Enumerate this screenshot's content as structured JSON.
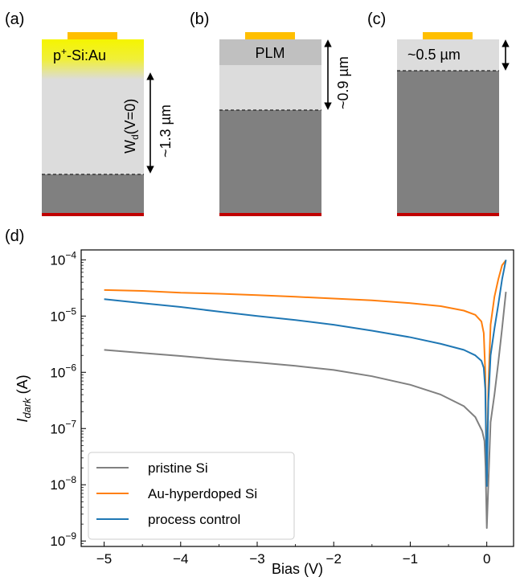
{
  "panels": {
    "a": {
      "label": "(a)",
      "layer_label_main": "p",
      "layer_label_sup": "+",
      "layer_label_rest": "-Si:Au",
      "depletion_label_main": "W",
      "depletion_label_sub": "d",
      "depletion_label_rest": "(V=0)",
      "depth_label": "~1.3 µm"
    },
    "b": {
      "label": "(b)",
      "layer_label": "PLM",
      "depth_label": "~0.9 µm"
    },
    "c": {
      "label": "(c)",
      "depth_label": "~0.5 µm"
    },
    "d": {
      "label": "(d)"
    }
  },
  "colors": {
    "contact": "#ffbf00",
    "doped_layer": "#f5f500",
    "depletion": "#dcdcdc",
    "bulk": "#808080",
    "back_contact": "#c00000",
    "plm_layer": "#c0c0c0"
  },
  "chart_data": {
    "type": "line",
    "xlabel": "Bias (V)",
    "ylabel_main": "I",
    "ylabel_sub": "dark",
    "ylabel_rest": " (A)",
    "xlim": [
      -5.3,
      0.35
    ],
    "ylim": [
      8e-10,
      0.00015
    ],
    "yscale": "log",
    "x_ticks": [
      -5,
      -4,
      -3,
      -2,
      -1,
      0
    ],
    "x_tick_labels": [
      "−5",
      "−4",
      "−3",
      "−2",
      "−1",
      "0"
    ],
    "y_ticks": [
      -9,
      -8,
      -7,
      -6,
      -5,
      -4
    ],
    "legend_position": "lower-left",
    "series": [
      {
        "name": "pristine Si",
        "color": "#808080",
        "points": [
          [
            -5,
            2.5e-06
          ],
          [
            -4.5,
            2.2e-06
          ],
          [
            -4,
            1.95e-06
          ],
          [
            -3.5,
            1.7e-06
          ],
          [
            -3,
            1.5e-06
          ],
          [
            -2.5,
            1.3e-06
          ],
          [
            -2,
            1.1e-06
          ],
          [
            -1.5,
            8.5e-07
          ],
          [
            -1,
            6e-07
          ],
          [
            -0.6,
            4e-07
          ],
          [
            -0.3,
            2.5e-07
          ],
          [
            -0.15,
            1.6e-07
          ],
          [
            -0.06,
            9e-08
          ],
          [
            -0.03,
            6e-08
          ],
          [
            -0.015,
            2e-08
          ],
          [
            0,
            1.7e-09
          ],
          [
            0.02,
            1e-08
          ],
          [
            0.05,
            1.3e-07
          ],
          [
            0.1,
            4e-07
          ],
          [
            0.15,
            1.5e-06
          ],
          [
            0.2,
            6e-06
          ],
          [
            0.25,
            2.7e-05
          ]
        ]
      },
      {
        "name": "Au-hyperdoped Si",
        "color": "#ff7f0e",
        "points": [
          [
            -5,
            2.9e-05
          ],
          [
            -4.5,
            2.8e-05
          ],
          [
            -4,
            2.6e-05
          ],
          [
            -3.5,
            2.5e-05
          ],
          [
            -3,
            2.35e-05
          ],
          [
            -2.5,
            2.2e-05
          ],
          [
            -2,
            2.05e-05
          ],
          [
            -1.5,
            1.9e-05
          ],
          [
            -1,
            1.7e-05
          ],
          [
            -0.6,
            1.5e-05
          ],
          [
            -0.3,
            1.25e-05
          ],
          [
            -0.15,
            1.05e-05
          ],
          [
            -0.07,
            8e-06
          ],
          [
            -0.04,
            5e-06
          ],
          [
            -0.02,
            1e-06
          ],
          [
            0,
            1e-08
          ],
          [
            0.02,
            5e-07
          ],
          [
            0.05,
            7e-06
          ],
          [
            0.1,
            2.2e-05
          ],
          [
            0.15,
            4.5e-05
          ],
          [
            0.2,
            8e-05
          ],
          [
            0.25,
            9.8e-05
          ]
        ]
      },
      {
        "name": "process control",
        "color": "#1f77b4",
        "points": [
          [
            -5,
            2e-05
          ],
          [
            -4.5,
            1.7e-05
          ],
          [
            -4,
            1.45e-05
          ],
          [
            -3.5,
            1.2e-05
          ],
          [
            -3,
            1e-05
          ],
          [
            -2.5,
            8.5e-06
          ],
          [
            -2,
            7e-06
          ],
          [
            -1.5,
            5.5e-06
          ],
          [
            -1,
            4.2e-06
          ],
          [
            -0.6,
            3.2e-06
          ],
          [
            -0.3,
            2.5e-06
          ],
          [
            -0.15,
            2e-06
          ],
          [
            -0.07,
            1.6e-06
          ],
          [
            -0.04,
            1.2e-06
          ],
          [
            -0.02,
            5e-07
          ],
          [
            0,
            9.5e-09
          ],
          [
            0.02,
            3e-07
          ],
          [
            0.05,
            2e-06
          ],
          [
            0.1,
            6e-06
          ],
          [
            0.15,
            1.6e-05
          ],
          [
            0.2,
            4.5e-05
          ],
          [
            0.25,
            0.0001
          ]
        ]
      }
    ]
  }
}
